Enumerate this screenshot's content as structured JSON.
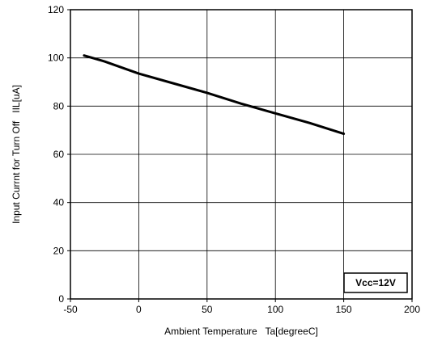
{
  "chart_data": {
    "type": "line",
    "title": "",
    "xlabel": "Ambient Temperature   Ta[degreeC]",
    "ylabel": "Input Currnt for Turn Off   IIL[uA]",
    "xlim": [
      -50,
      200
    ],
    "ylim": [
      0,
      120
    ],
    "xticks": [
      -50,
      0,
      50,
      100,
      150,
      200
    ],
    "yticks": [
      0,
      20,
      40,
      60,
      80,
      100,
      120
    ],
    "grid": true,
    "legend": "none",
    "annotation": "Vcc=12V",
    "series": [
      {
        "x": [
          -40,
          -25,
          0,
          25,
          50,
          75,
          100,
          125,
          150
        ],
        "y": [
          101,
          98.5,
          93.5,
          89.5,
          85.5,
          81,
          77,
          73,
          68.5
        ],
        "color": "#000000"
      }
    ]
  }
}
